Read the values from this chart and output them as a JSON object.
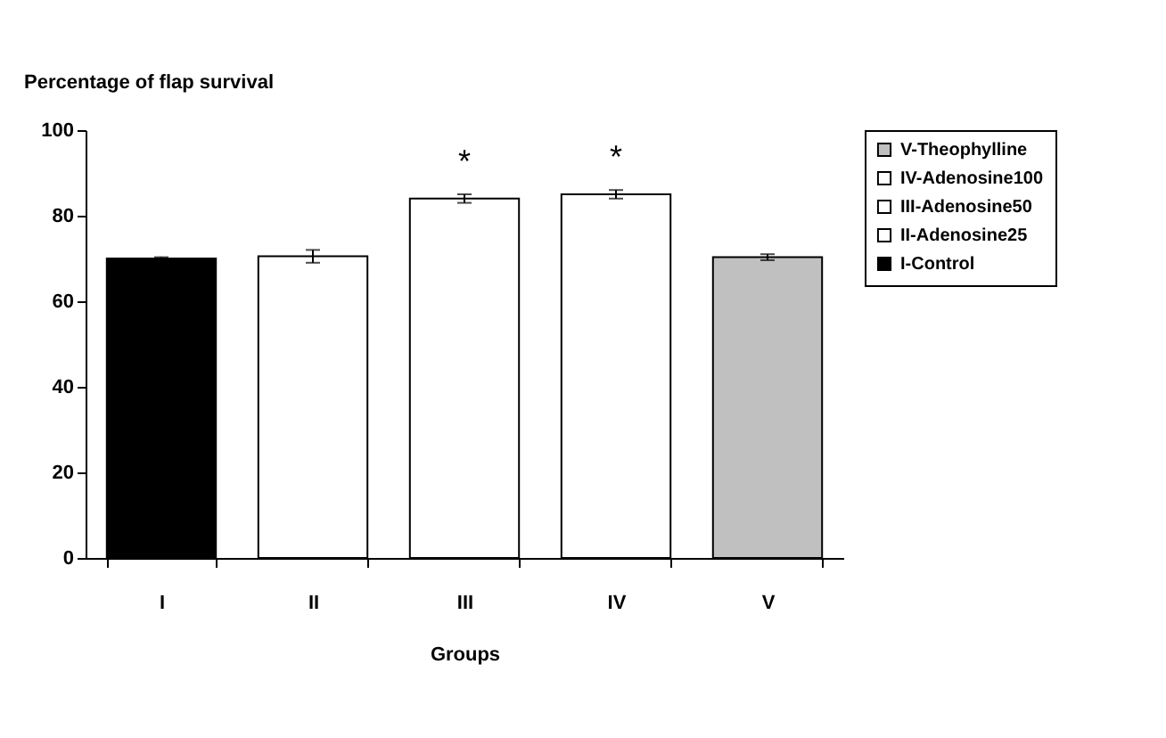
{
  "chart_data": {
    "type": "bar",
    "ylabel": "Percentage of flap survival",
    "xlabel": "Groups",
    "categories": [
      "I",
      "II",
      "III",
      "IV",
      "V"
    ],
    "series": [
      {
        "name": "I-Control",
        "color": "#000000",
        "values": [
          70,
          null,
          null,
          null,
          null
        ],
        "errors": [
          0.3,
          null,
          null,
          null,
          null
        ]
      },
      {
        "name": "II-Adenosine25",
        "color": "#ffffff",
        "values": [
          null,
          70.5,
          null,
          null,
          null
        ],
        "errors": [
          null,
          1.5,
          null,
          null,
          null
        ]
      },
      {
        "name": "III-Adenosine50",
        "color": "#ffffff",
        "values": [
          null,
          null,
          84,
          null,
          null
        ],
        "errors": [
          null,
          null,
          1,
          null,
          null
        ]
      },
      {
        "name": "IV-Adenosine100",
        "color": "#ffffff",
        "values": [
          null,
          null,
          null,
          85,
          null
        ],
        "errors": [
          null,
          null,
          null,
          1,
          null
        ]
      },
      {
        "name": "V-Theophylline",
        "color": "#c0c0c0",
        "values": [
          null,
          null,
          null,
          null,
          70.3
        ],
        "errors": [
          null,
          null,
          null,
          null,
          0.7
        ]
      }
    ],
    "ylim": [
      0,
      100
    ],
    "yticks": [
      0,
      20,
      40,
      60,
      80,
      100
    ],
    "grid": false,
    "legend": "top right",
    "annotations": [
      {
        "text": "*",
        "x": "III",
        "y": 84
      },
      {
        "text": "*",
        "x": "IV",
        "y": 85
      }
    ]
  }
}
